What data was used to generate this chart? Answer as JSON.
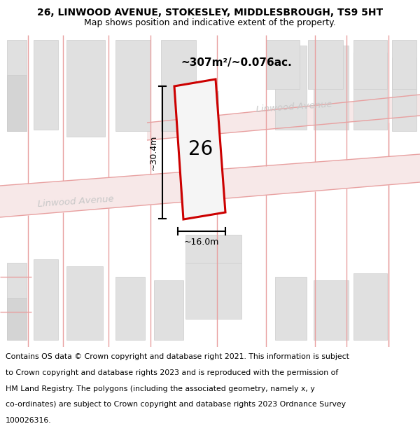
{
  "title_line1": "26, LINWOOD AVENUE, STOKESLEY, MIDDLESBROUGH, TS9 5HT",
  "title_line2": "Map shows position and indicative extent of the property.",
  "area_text": "~307m²/~0.076ac.",
  "road_label1": "Linwood Avenue",
  "road_label2": "Linwood Avenue",
  "number_label": "26",
  "dim_height": "~30.4m",
  "dim_width": "~16.0m",
  "footer_lines": [
    "Contains OS data © Crown copyright and database right 2021. This information is subject",
    "to Crown copyright and database rights 2023 and is reproduced with the permission of",
    "HM Land Registry. The polygons (including the associated geometry, namely x, y",
    "co-ordinates) are subject to Crown copyright and database rights 2023 Ordnance Survey",
    "100026316."
  ],
  "map_bg": "#f2f2f2",
  "road_fill": "#f7e8e8",
  "road_line_color": "#e8a0a0",
  "building_fill": "#e0e0e0",
  "building_edge": "#cccccc",
  "building_inner_fill": "#d8d8d8",
  "property_edge": "#cc0000",
  "property_fill": "#f5f5f5",
  "title_fontsize": 10,
  "subtitle_fontsize": 9,
  "footer_fontsize": 7.8,
  "number_fontsize": 20,
  "area_fontsize": 11,
  "dim_fontsize": 9,
  "road_label_fontsize": 9.5,
  "road_label_color": "#c8c8c8"
}
